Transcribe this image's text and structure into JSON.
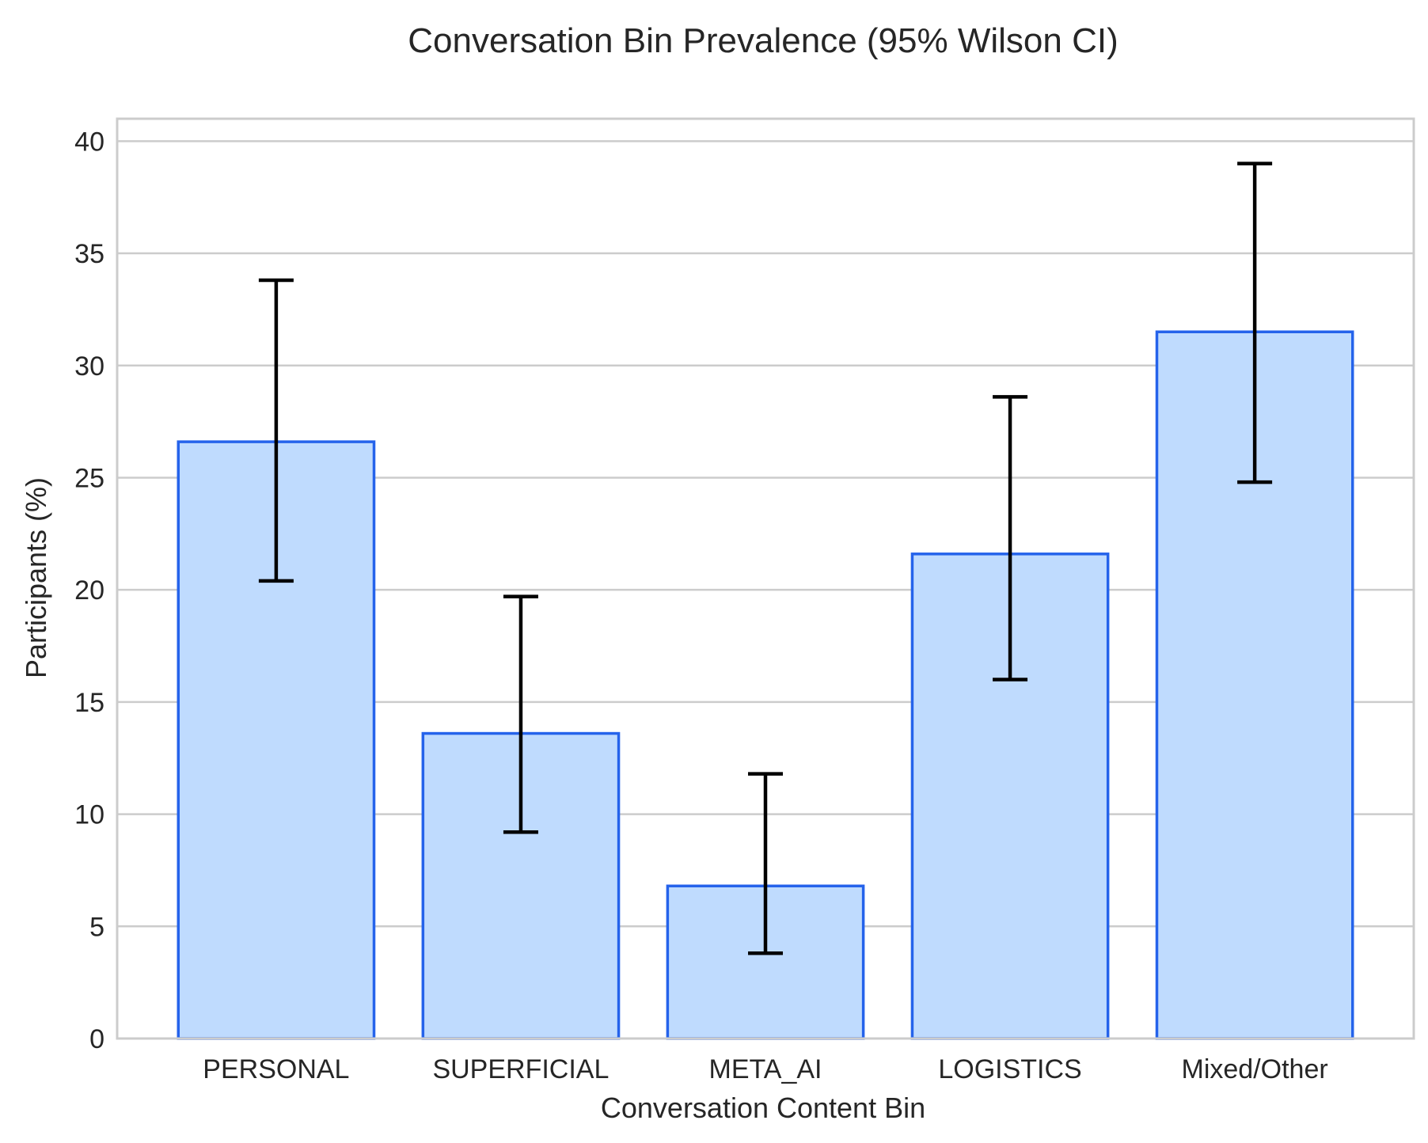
{
  "chart_data": {
    "type": "bar",
    "title": "Conversation Bin Prevalence (95% Wilson CI)",
    "xlabel": "Conversation Content Bin",
    "ylabel": "Participants (%)",
    "ylim": [
      0,
      41
    ],
    "yticks": [
      0,
      5,
      10,
      15,
      20,
      25,
      30,
      35,
      40
    ],
    "grid": true,
    "categories": [
      "PERSONAL",
      "SUPERFICIAL",
      "META_AI",
      "LOGISTICS",
      "Mixed/Other"
    ],
    "values": [
      26.6,
      13.6,
      6.8,
      21.6,
      31.5
    ],
    "ci_lower": [
      20.4,
      9.2,
      3.8,
      16.0,
      24.8
    ],
    "ci_upper": [
      33.8,
      19.7,
      11.8,
      28.6,
      39.0
    ],
    "colors": {
      "bar_fill": "#bfdbfe",
      "bar_edge": "#2563eb",
      "error_bar": "#000000"
    }
  }
}
